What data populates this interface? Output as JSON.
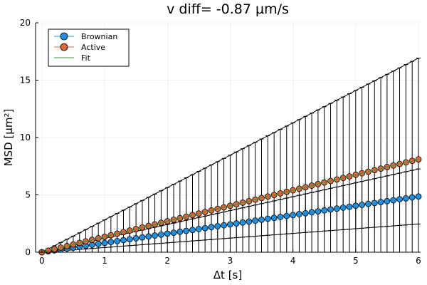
{
  "chart_data": {
    "type": "scatter",
    "title": "v diff= -0.87 µm/s",
    "xlabel": "Δt [s]",
    "ylabel": "MSD [µm²]",
    "xlim": [
      -0.1,
      6.0
    ],
    "ylim": [
      0,
      20
    ],
    "xticks": [
      0,
      1,
      2,
      3,
      4,
      5,
      6
    ],
    "yticks": [
      0,
      5,
      10,
      15,
      20
    ],
    "xtick_labels": [
      "0",
      "1",
      "2",
      "3",
      "4",
      "5",
      "6"
    ],
    "ytick_labels": [
      "0",
      "5",
      "10",
      "15",
      "20"
    ],
    "grid": true,
    "legend_position": "top-left",
    "series": [
      {
        "name": "Brownian",
        "color": "#1f8fe0",
        "marker": "circle",
        "x_start": 0.0,
        "x_step": 0.1,
        "x_end": 6.0,
        "y_slope": 0.81,
        "err_slope": 0.4
      },
      {
        "name": "Active",
        "color": "#e0663a",
        "marker": "circle",
        "x_start": 0.0,
        "x_step": 0.1,
        "x_end": 6.0,
        "y_slope": 1.35,
        "err_slope": 1.47
      },
      {
        "name": "Fit",
        "color": "#3a9a3a",
        "marker": "none",
        "x": [
          0.0,
          6.0
        ],
        "y": [
          0.0,
          8.1
        ]
      }
    ]
  }
}
